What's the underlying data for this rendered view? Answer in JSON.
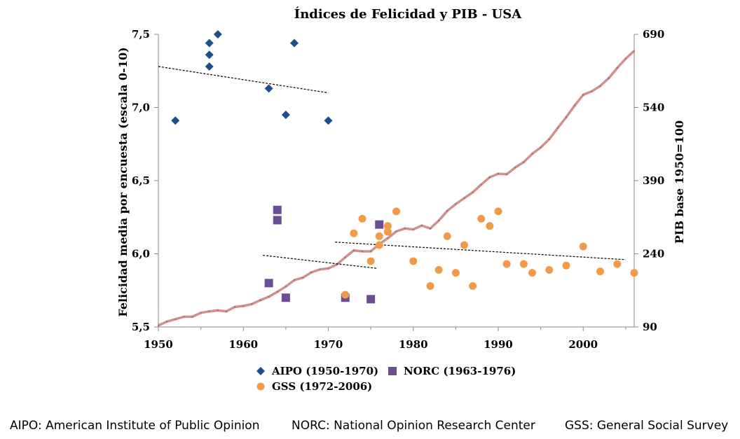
{
  "chart_data": {
    "type": "scatter",
    "title": "Índices de Felicidad  y PIB - USA",
    "ylabel": "Felicidad media por encuesta (escala 0-10)",
    "y2label": "PIB base 1950=100",
    "xlim": [
      1950,
      2006
    ],
    "ylim": [
      5.5,
      7.5
    ],
    "y2lim": [
      90,
      690
    ],
    "xticks": [
      "1950",
      "1960",
      "1970",
      "1980",
      "1990",
      "2000"
    ],
    "xtick_values": [
      1950,
      1960,
      1970,
      1980,
      1990,
      2000
    ],
    "yticks": [
      "5,5",
      "6,0",
      "6,5",
      "7,0",
      "7,5"
    ],
    "ytick_values": [
      5.5,
      6.0,
      6.5,
      7.0,
      7.5
    ],
    "y2ticks": [
      "90",
      "240",
      "390",
      "540",
      "690"
    ],
    "y2tick_values": [
      90,
      240,
      390,
      540,
      690
    ],
    "legend_position": "bottom",
    "colors": {
      "aipo": "#1f4e8c",
      "norc": "#6b4f96",
      "gss": "#f39a48",
      "gdp": "#d09090",
      "trend": "#000000"
    },
    "series": [
      {
        "name": "AIPO (1950-1970)",
        "marker": "diamond",
        "legend": true,
        "points": [
          [
            1952,
            6.91
          ],
          [
            1956,
            7.28
          ],
          [
            1956,
            7.36
          ],
          [
            1956,
            7.44
          ],
          [
            1957,
            7.5
          ],
          [
            1963,
            7.13
          ],
          [
            1965,
            6.95
          ],
          [
            1966,
            7.44
          ],
          [
            1970,
            6.91
          ]
        ]
      },
      {
        "name": "NORC (1963-1976)",
        "marker": "square",
        "legend": true,
        "points": [
          [
            1963,
            5.8
          ],
          [
            1964,
            6.3
          ],
          [
            1964,
            6.23
          ],
          [
            1965,
            5.7
          ],
          [
            1972,
            5.7
          ],
          [
            1975,
            5.69
          ],
          [
            1976,
            6.2
          ]
        ]
      },
      {
        "name": "GSS (1972-2006)",
        "marker": "circle",
        "legend": true,
        "points": [
          [
            1972,
            5.72
          ],
          [
            1973,
            6.14
          ],
          [
            1974,
            6.24
          ],
          [
            1975,
            5.95
          ],
          [
            1976,
            6.12
          ],
          [
            1976,
            6.06
          ],
          [
            1977,
            6.19
          ],
          [
            1977,
            6.15
          ],
          [
            1978,
            6.29
          ],
          [
            1980,
            5.95
          ],
          [
            1982,
            5.78
          ],
          [
            1983,
            5.89
          ],
          [
            1984,
            6.12
          ],
          [
            1985,
            5.87
          ],
          [
            1986,
            6.06
          ],
          [
            1987,
            5.78
          ],
          [
            1988,
            6.24
          ],
          [
            1989,
            6.19
          ],
          [
            1990,
            6.29
          ],
          [
            1991,
            5.93
          ],
          [
            1993,
            5.93
          ],
          [
            1994,
            5.87
          ],
          [
            1996,
            5.89
          ],
          [
            1998,
            5.92
          ],
          [
            2000,
            6.05
          ],
          [
            2002,
            5.88
          ],
          [
            2004,
            5.93
          ],
          [
            2006,
            5.87
          ]
        ]
      },
      {
        "name": "PIB",
        "type": "line",
        "axis": "y2",
        "legend": false,
        "points": [
          [
            1950,
            93
          ],
          [
            1951,
            101
          ],
          [
            1952,
            106
          ],
          [
            1953,
            111
          ],
          [
            1954,
            111
          ],
          [
            1955,
            119
          ],
          [
            1956,
            122
          ],
          [
            1957,
            124
          ],
          [
            1958,
            122
          ],
          [
            1959,
            131
          ],
          [
            1960,
            133
          ],
          [
            1961,
            137
          ],
          [
            1962,
            145
          ],
          [
            1963,
            152
          ],
          [
            1964,
            162
          ],
          [
            1965,
            173
          ],
          [
            1966,
            186
          ],
          [
            1967,
            191
          ],
          [
            1968,
            202
          ],
          [
            1969,
            208
          ],
          [
            1970,
            210
          ],
          [
            1971,
            218
          ],
          [
            1972,
            233
          ],
          [
            1973,
            247
          ],
          [
            1974,
            245
          ],
          [
            1975,
            245
          ],
          [
            1976,
            260
          ],
          [
            1977,
            272
          ],
          [
            1978,
            286
          ],
          [
            1979,
            292
          ],
          [
            1980,
            290
          ],
          [
            1981,
            298
          ],
          [
            1982,
            292
          ],
          [
            1983,
            308
          ],
          [
            1984,
            328
          ],
          [
            1985,
            342
          ],
          [
            1986,
            354
          ],
          [
            1987,
            366
          ],
          [
            1988,
            382
          ],
          [
            1989,
            397
          ],
          [
            1990,
            404
          ],
          [
            1991,
            403
          ],
          [
            1992,
            417
          ],
          [
            1993,
            428
          ],
          [
            1994,
            445
          ],
          [
            1995,
            458
          ],
          [
            1996,
            475
          ],
          [
            1997,
            498
          ],
          [
            1998,
            520
          ],
          [
            1999,
            544
          ],
          [
            2000,
            566
          ],
          [
            2001,
            573
          ],
          [
            2002,
            584
          ],
          [
            2003,
            600
          ],
          [
            2004,
            621
          ],
          [
            2005,
            640
          ],
          [
            2006,
            656
          ]
        ]
      }
    ],
    "trendlines": [
      {
        "series": "AIPO (1950-1970)",
        "from": [
          1950,
          7.28
        ],
        "to": [
          1970,
          7.1
        ]
      },
      {
        "series": "NORC (1963-1976)",
        "from": [
          1962.3,
          5.99
        ],
        "to": [
          1975.8,
          5.9
        ]
      },
      {
        "series": "GSS (1972-2006)",
        "from": [
          1970.8,
          6.08
        ],
        "to": [
          2005,
          5.96
        ]
      }
    ]
  },
  "footer": {
    "aipo": "AIPO: American Institute of Public Opinion",
    "norc": "NORC: National Opinion Research Center",
    "gss": "GSS: General Social Survey"
  }
}
